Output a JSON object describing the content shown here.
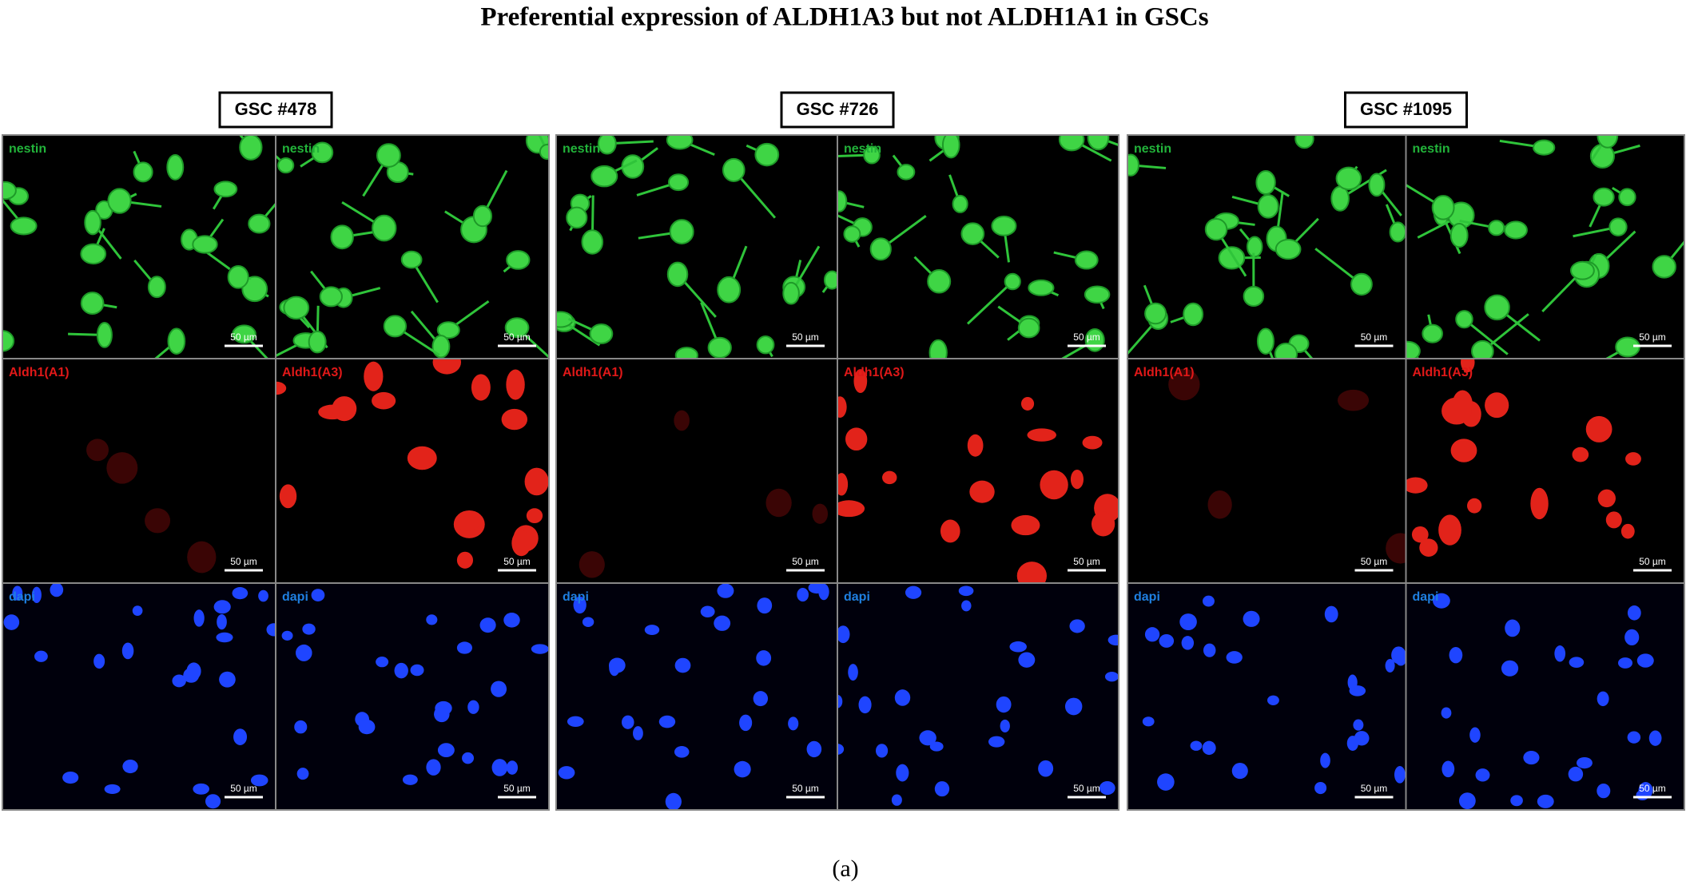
{
  "title": "Preferential expression of ALDH1A3 but not ALDH1A1 in GSCs",
  "groups": [
    {
      "label": "GSC #478",
      "panels": [
        {
          "label": "nestin",
          "scale": "50 µm"
        },
        {
          "label": "nestin",
          "scale": "50 µm"
        },
        {
          "label": "Aldh1(A1)",
          "scale": "50 µm"
        },
        {
          "label": "Aldh1(A3)",
          "scale": "50 µm"
        },
        {
          "label": "dapi",
          "scale": "50 µm"
        },
        {
          "label": "dapi",
          "scale": "50 µm"
        }
      ]
    },
    {
      "label": "GSC #726",
      "panels": [
        {
          "label": "nestin",
          "scale": "50 µm"
        },
        {
          "label": "nestin",
          "scale": "50 µm"
        },
        {
          "label": "Aldh1(A1)",
          "scale": "50 µm"
        },
        {
          "label": "Aldh1(A3)",
          "scale": "50 µm"
        },
        {
          "label": "dapi",
          "scale": "50 µm"
        },
        {
          "label": "dapi",
          "scale": "50 µm"
        }
      ]
    },
    {
      "label": "GSC #1095",
      "panels": [
        {
          "label": "nestin",
          "scale": "50 µm"
        },
        {
          "label": "nestin",
          "scale": "50 µm"
        },
        {
          "label": "Aldh1(A1)",
          "scale": "50 µm"
        },
        {
          "label": "Aldh1(A3)",
          "scale": "50 µm"
        },
        {
          "label": "dapi",
          "scale": "50 µm"
        },
        {
          "label": "dapi",
          "scale": "50 µm"
        }
      ]
    }
  ],
  "caption": "(a)"
}
